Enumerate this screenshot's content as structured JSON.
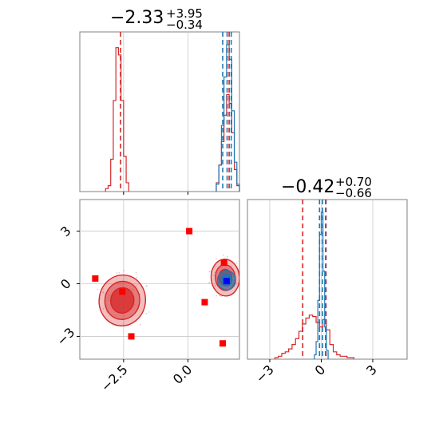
{
  "colors": {
    "red": "#d62728",
    "blue": "#1f77b4",
    "marker_red": "#ff0000",
    "marker_blue": "#0000ff",
    "grid": "#c8c8c8",
    "frame": "#808080"
  },
  "chart_data": [
    {
      "id": "hist-p1",
      "type": "histogram",
      "title_value": "−2.33",
      "title_sup": "+3.95",
      "title_sub": "−0.34",
      "xlim": [
        -4.2,
        2.0
      ],
      "grid_x": [
        -2.5,
        0.0
      ],
      "series": [
        {
          "color": "red",
          "bins": [
            [
              -3.15,
              0.02
            ],
            [
              -3.05,
              0.04
            ],
            [
              -2.95,
              0.22
            ],
            [
              -2.85,
              0.62
            ],
            [
              -2.75,
              0.98
            ],
            [
              -2.65,
              0.93
            ],
            [
              -2.55,
              0.62
            ],
            [
              -2.45,
              0.24
            ],
            [
              -2.35,
              0.06
            ],
            [
              1.15,
              0.06
            ],
            [
              1.25,
              0.18
            ],
            [
              1.35,
              0.34
            ],
            [
              1.45,
              0.52
            ],
            [
              1.55,
              0.66
            ],
            [
              1.65,
              0.6
            ],
            [
              1.75,
              0.4
            ],
            [
              1.85,
              0.15
            ],
            [
              1.95,
              0.04
            ]
          ],
          "bin_width": 0.1,
          "quantiles": [
            -2.62
          ]
        },
        {
          "color": "blue",
          "bins": [
            [
              1.15,
              0.05
            ],
            [
              1.25,
              0.18
            ],
            [
              1.35,
              0.45
            ],
            [
              1.45,
              0.78
            ],
            [
              1.55,
              1.0
            ],
            [
              1.65,
              0.9
            ],
            [
              1.75,
              0.55
            ],
            [
              1.85,
              0.2
            ],
            [
              1.95,
              0.05
            ]
          ],
          "bin_width": 0.1,
          "quantiles": [
            1.35,
            1.52,
            1.68
          ]
        }
      ],
      "red_median_right": 1.6
    },
    {
      "id": "scatter-p1-p2",
      "type": "scatter",
      "xlim": [
        -4.2,
        2.0
      ],
      "ylim": [
        -4.3,
        4.8
      ],
      "xticks": [
        -2.5,
        0.0
      ],
      "xtick_labels": [
        "−2.5",
        "0.0"
      ],
      "yticks": [
        3,
        0,
        -3
      ],
      "ytick_labels": [
        "3",
        "0",
        "−3"
      ],
      "red_squares": [
        [
          -3.6,
          0.3
        ],
        [
          -2.55,
          -0.45
        ],
        [
          -2.2,
          -3.0
        ],
        [
          0.05,
          3.0
        ],
        [
          0.65,
          -1.05
        ],
        [
          1.35,
          -3.4
        ],
        [
          1.4,
          1.2
        ]
      ],
      "blue_squares": [
        [
          1.5,
          0.15
        ]
      ],
      "contours": [
        {
          "color": "red",
          "cx": -2.55,
          "cy": -0.95,
          "rx": 0.9,
          "ry": 1.45,
          "levels": [
            1.0,
            0.75,
            0.5
          ]
        },
        {
          "color": "red",
          "cx": 1.45,
          "cy": 0.35,
          "rx": 0.55,
          "ry": 1.05,
          "levels": [
            1.0,
            0.7,
            0.45
          ]
        },
        {
          "color": "blue",
          "cx": 1.5,
          "cy": 0.2,
          "rx": 0.35,
          "ry": 0.55,
          "levels": [
            1.0,
            0.6
          ]
        }
      ]
    },
    {
      "id": "hist-p2",
      "type": "histogram",
      "title_value": "−0.42",
      "title_sup": "+0.70",
      "title_sub": "−0.66",
      "xlim": [
        -4.3,
        5.0
      ],
      "xticks": [
        -3,
        0,
        3
      ],
      "xtick_labels": [
        "−3",
        "0",
        "3"
      ],
      "grid_x": [
        -3,
        0,
        3
      ],
      "series": [
        {
          "color": "red",
          "bins": [
            [
              -2.6,
              0.01
            ],
            [
              -2.4,
              0.02
            ],
            [
              -2.2,
              0.04
            ],
            [
              -2.0,
              0.05
            ],
            [
              -1.8,
              0.07
            ],
            [
              -1.6,
              0.1
            ],
            [
              -1.4,
              0.14
            ],
            [
              -1.2,
              0.19
            ],
            [
              -1.0,
              0.24
            ],
            [
              -0.8,
              0.28
            ],
            [
              -0.6,
              0.3
            ],
            [
              -0.4,
              0.29
            ],
            [
              -0.2,
              0.25
            ],
            [
              0.0,
              0.22
            ],
            [
              0.2,
              0.27
            ],
            [
              0.4,
              0.2
            ],
            [
              0.6,
              0.1
            ],
            [
              0.8,
              0.05
            ],
            [
              1.0,
              0.03
            ],
            [
              1.2,
              0.02
            ],
            [
              1.4,
              0.02
            ],
            [
              1.6,
              0.01
            ],
            [
              1.8,
              0.01
            ]
          ],
          "bin_width": 0.2,
          "quantiles": [
            -1.08,
            0.28
          ]
        },
        {
          "color": "blue",
          "bins": [
            [
              -0.35,
              0.03
            ],
            [
              -0.25,
              0.12
            ],
            [
              -0.15,
              0.4
            ],
            [
              -0.05,
              0.85
            ],
            [
              0.05,
              1.0
            ],
            [
              0.15,
              0.6
            ],
            [
              0.25,
              0.22
            ],
            [
              0.35,
              0.06
            ]
          ],
          "bin_width": 0.1,
          "quantiles": [
            -0.1,
            0.08,
            0.25
          ]
        }
      ]
    }
  ]
}
